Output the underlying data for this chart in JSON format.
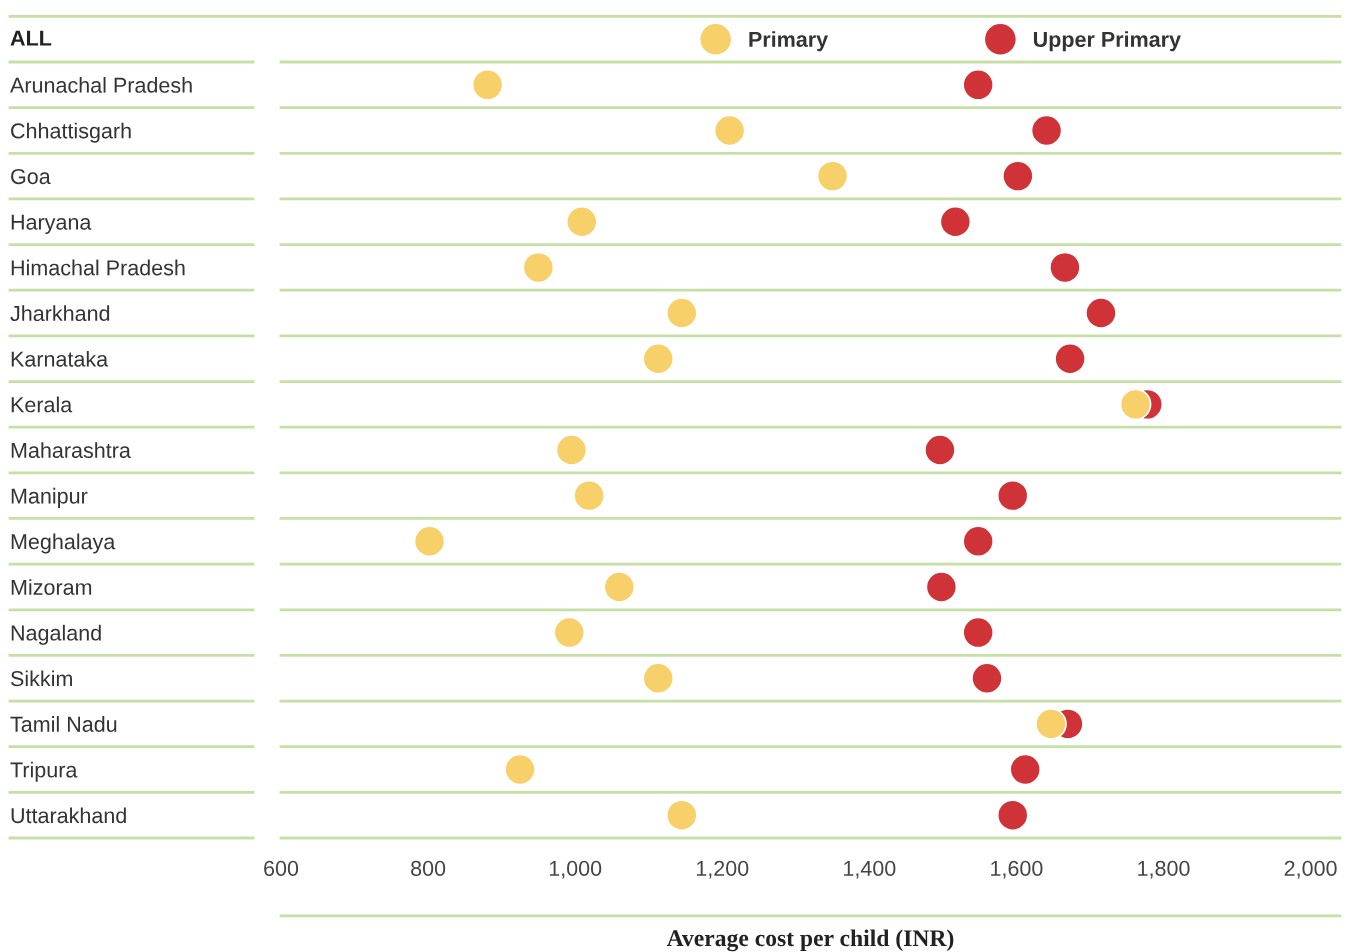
{
  "chart_data": {
    "type": "scatter",
    "xlabel": "Average cost per child (INR)",
    "annotations": [
      "ALL"
    ],
    "categories": [
      "Arunachal Pradesh",
      "Chhattisgarh",
      "Goa",
      "Haryana",
      "Himachal Pradesh",
      "Jharkhand",
      "Karnataka",
      "Kerala",
      "Maharashtra",
      "Manipur",
      "Meghalaya",
      "Mizoram",
      "Nagaland",
      "Sikkim",
      "Tamil Nadu",
      "Tripura",
      "Uttarakhand"
    ],
    "series": [
      {
        "name": "Upper Primary",
        "color": "#d03337",
        "values": [
          1548,
          1641,
          1602,
          1517,
          1666,
          1715,
          1673,
          1778,
          1496,
          1595,
          1548,
          1498,
          1548,
          1560,
          1670,
          1612,
          1595
        ]
      },
      {
        "name": "Primary",
        "color": "#f8d06a",
        "values": [
          881,
          1210,
          1350,
          1009,
          950,
          1145,
          1113,
          1762,
          995,
          1019,
          802,
          1060,
          992,
          1113,
          1647,
          925,
          1145
        ]
      }
    ],
    "xlim": [
      600,
      2040
    ],
    "xticks": [
      {
        "value": 600,
        "label": "600"
      },
      {
        "value": 800,
        "label": "800"
      },
      {
        "value": 1000,
        "label": "1,000"
      },
      {
        "value": 1200,
        "label": "1,200"
      },
      {
        "value": 1400,
        "label": "1,400"
      },
      {
        "value": 1600,
        "label": "1,600"
      },
      {
        "value": 1800,
        "label": "1,800"
      },
      {
        "value": 2000,
        "label": "2,000"
      }
    ],
    "grid": "y",
    "legend": "top",
    "marker": "circle",
    "orientation": "horizontal"
  }
}
